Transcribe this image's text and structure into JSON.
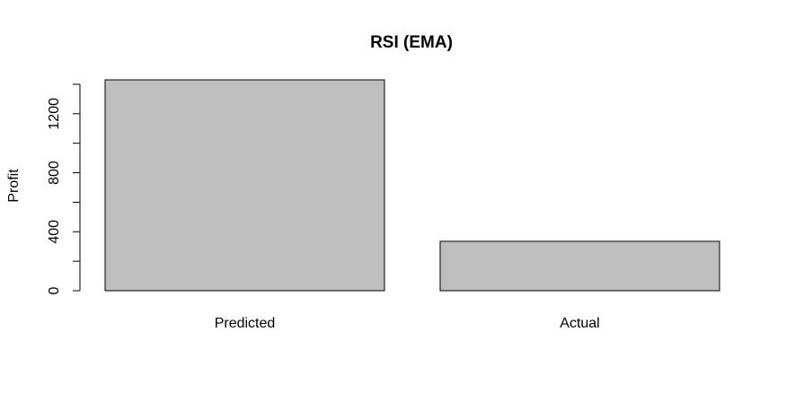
{
  "chart_data": {
    "type": "bar",
    "title": "RSI (EMA)",
    "xlabel": "",
    "ylabel": "Profit",
    "categories": [
      "Predicted",
      "Actual"
    ],
    "values": [
      1430,
      335
    ],
    "ylim": [
      0,
      1430
    ],
    "yticks": [
      0,
      400,
      800,
      1200
    ],
    "ytick_labels": [
      "0",
      "400",
      "800",
      "1200"
    ],
    "minor_tick_step": 200,
    "bar_fill": "#bebebe",
    "grid": false,
    "legend": "none"
  }
}
